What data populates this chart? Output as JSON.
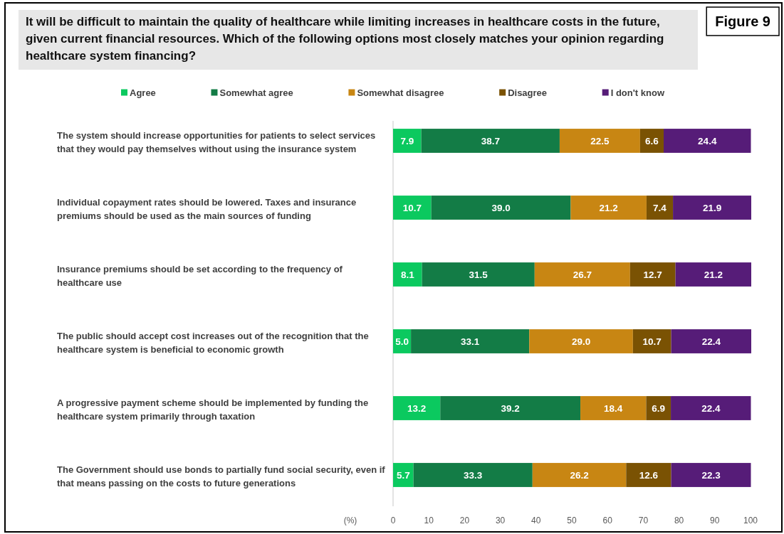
{
  "chart_data": {
    "type": "bar",
    "orientation": "horizontal",
    "stacked": true,
    "title": "It will be difficult to maintain the quality of healthcare while limiting increases in healthcare costs in the future, given current financial resources. Which of the following options most closely matches your opinion regarding healthcare system financing?",
    "annotations": [
      "Figure 9"
    ],
    "xlabel": "(%)",
    "categories": [
      "The system should increase opportunities for patients to select services that they would pay themselves without using the insurance system",
      "Individual copayment rates should be lowered. Taxes and insurance premiums should be used as the main sources of funding",
      "Insurance premiums should be set according to the frequency of healthcare use",
      "The public should accept cost increases out of the recognition that the healthcare system is beneficial to economic growth",
      "A progressive payment scheme should be implemented by funding the healthcare system primarily through taxation",
      "The Government should use bonds to partially fund social security, even if that means passing on the costs to future generations"
    ],
    "series": [
      {
        "name": "Agree",
        "color": "#0bc95f",
        "values": [
          7.9,
          10.7,
          8.1,
          5.0,
          13.2,
          5.7
        ],
        "value_labels": [
          "7.9",
          "10.7",
          "8.1",
          "5.0",
          "13.2",
          "5.7"
        ]
      },
      {
        "name": "Somewhat agree",
        "color": "#137c46",
        "values": [
          38.7,
          39.0,
          31.5,
          33.1,
          39.2,
          33.3
        ],
        "value_labels": [
          "38.7",
          "39.0",
          "31.5",
          "33.1",
          "39.2",
          "33.3"
        ]
      },
      {
        "name": "Somewhat disagree",
        "color": "#c88613",
        "values": [
          22.5,
          21.2,
          26.7,
          29.0,
          18.4,
          26.2
        ],
        "value_labels": [
          "22.5",
          "21.2",
          "26.7",
          "29.0",
          "18.4",
          "26.2"
        ]
      },
      {
        "name": "Disagree",
        "color": "#7a5203",
        "values": [
          6.6,
          7.4,
          12.7,
          10.7,
          6.9,
          12.6
        ],
        "value_labels": [
          "6.6",
          "7.4",
          "12.7",
          "10.7",
          "6.9",
          "12.6"
        ]
      },
      {
        "name": "I don't know",
        "color": "#561c78",
        "values": [
          24.4,
          21.9,
          21.2,
          22.4,
          22.4,
          22.3
        ],
        "value_labels": [
          "24.4",
          "21.9",
          "21.2",
          "22.4",
          "22.4",
          "22.3"
        ]
      }
    ],
    "xlim": [
      0,
      100
    ],
    "xticks": [
      0,
      10,
      20,
      30,
      40,
      50,
      60,
      70,
      80,
      90,
      100
    ],
    "legend": "top"
  }
}
